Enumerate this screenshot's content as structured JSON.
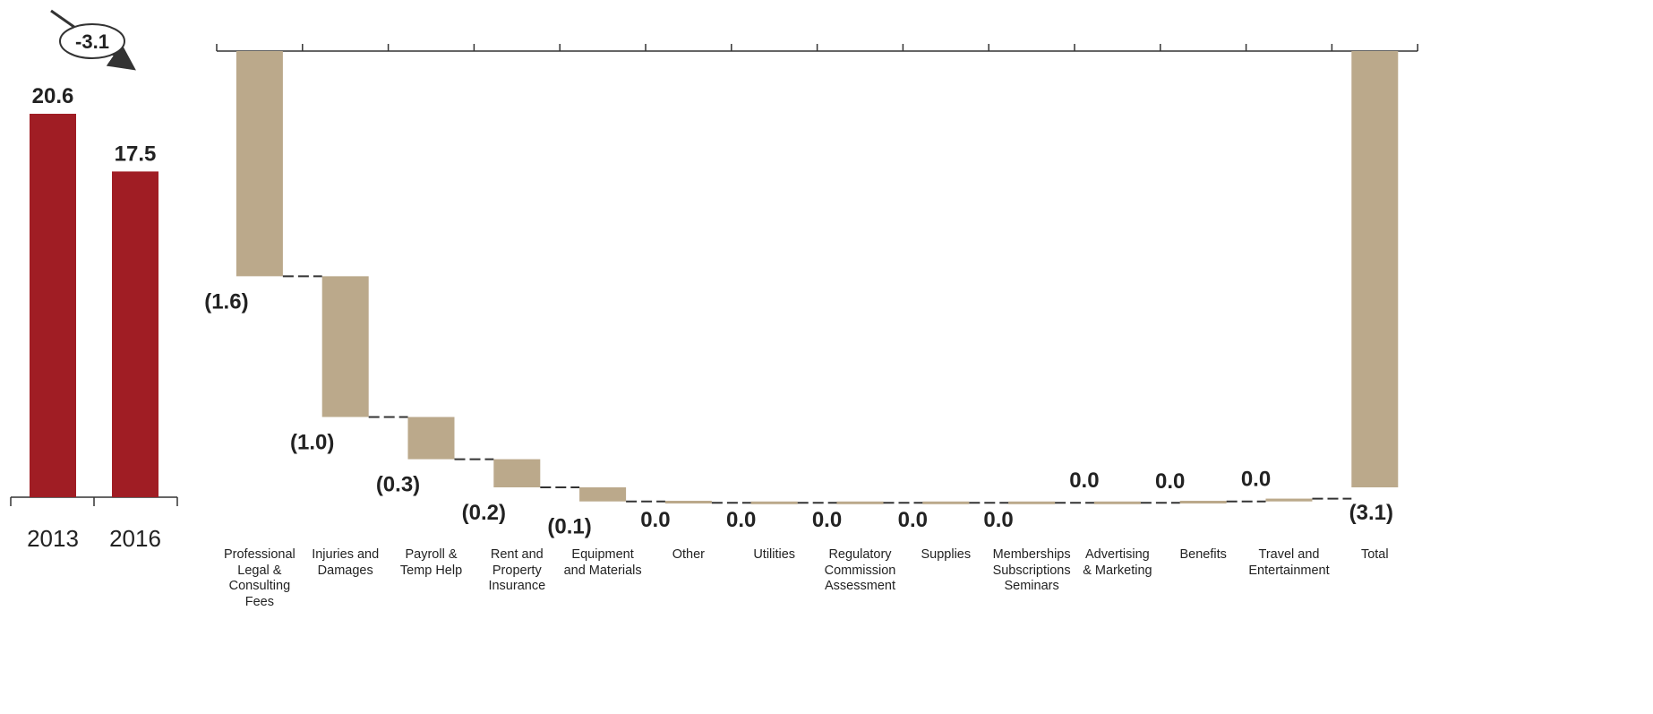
{
  "colors": {
    "summary_bar": "#a01d24",
    "waterfall_bar": "#bba98b",
    "axis": "#333333",
    "text": "#222222"
  },
  "chart_data": [
    {
      "type": "bar",
      "categories": [
        "2013",
        "2016"
      ],
      "values": [
        20.6,
        17.5
      ],
      "value_labels": [
        "20.6",
        "17.5"
      ],
      "change_annotation": "-3.1",
      "ylim": [
        0,
        20.6
      ]
    },
    {
      "type": "waterfall",
      "categories": [
        "Professional\nLegal &\nConsulting\nFees",
        "Injuries and\nDamages",
        "Payroll &\nTemp Help",
        "Rent and\nProperty\nInsurance",
        "Equipment\nand Materials",
        "Other",
        "Utilities",
        "Regulatory\nCommission\nAssessment",
        "Supplies",
        "Memberships\nSubscriptions\nSeminars",
        "Advertising\n& Marketing",
        "Benefits",
        "Travel and\nEntertainment",
        "Total"
      ],
      "values": [
        -1.6,
        -1.0,
        -0.3,
        -0.2,
        -0.1,
        -0.01,
        0.0,
        0.0,
        0.0,
        0.0,
        0.0,
        0.01,
        0.02,
        -3.1
      ],
      "value_labels": [
        "(1.6)",
        "(1.0)",
        "(0.3)",
        "(0.2)",
        "(0.1)",
        "0.0",
        "0.0",
        "0.0",
        "0.0",
        "0.0",
        "0.0",
        "0.0",
        "0.0",
        "(3.1)"
      ],
      "total_index": 13,
      "ylim": [
        -3.1,
        0
      ]
    }
  ]
}
